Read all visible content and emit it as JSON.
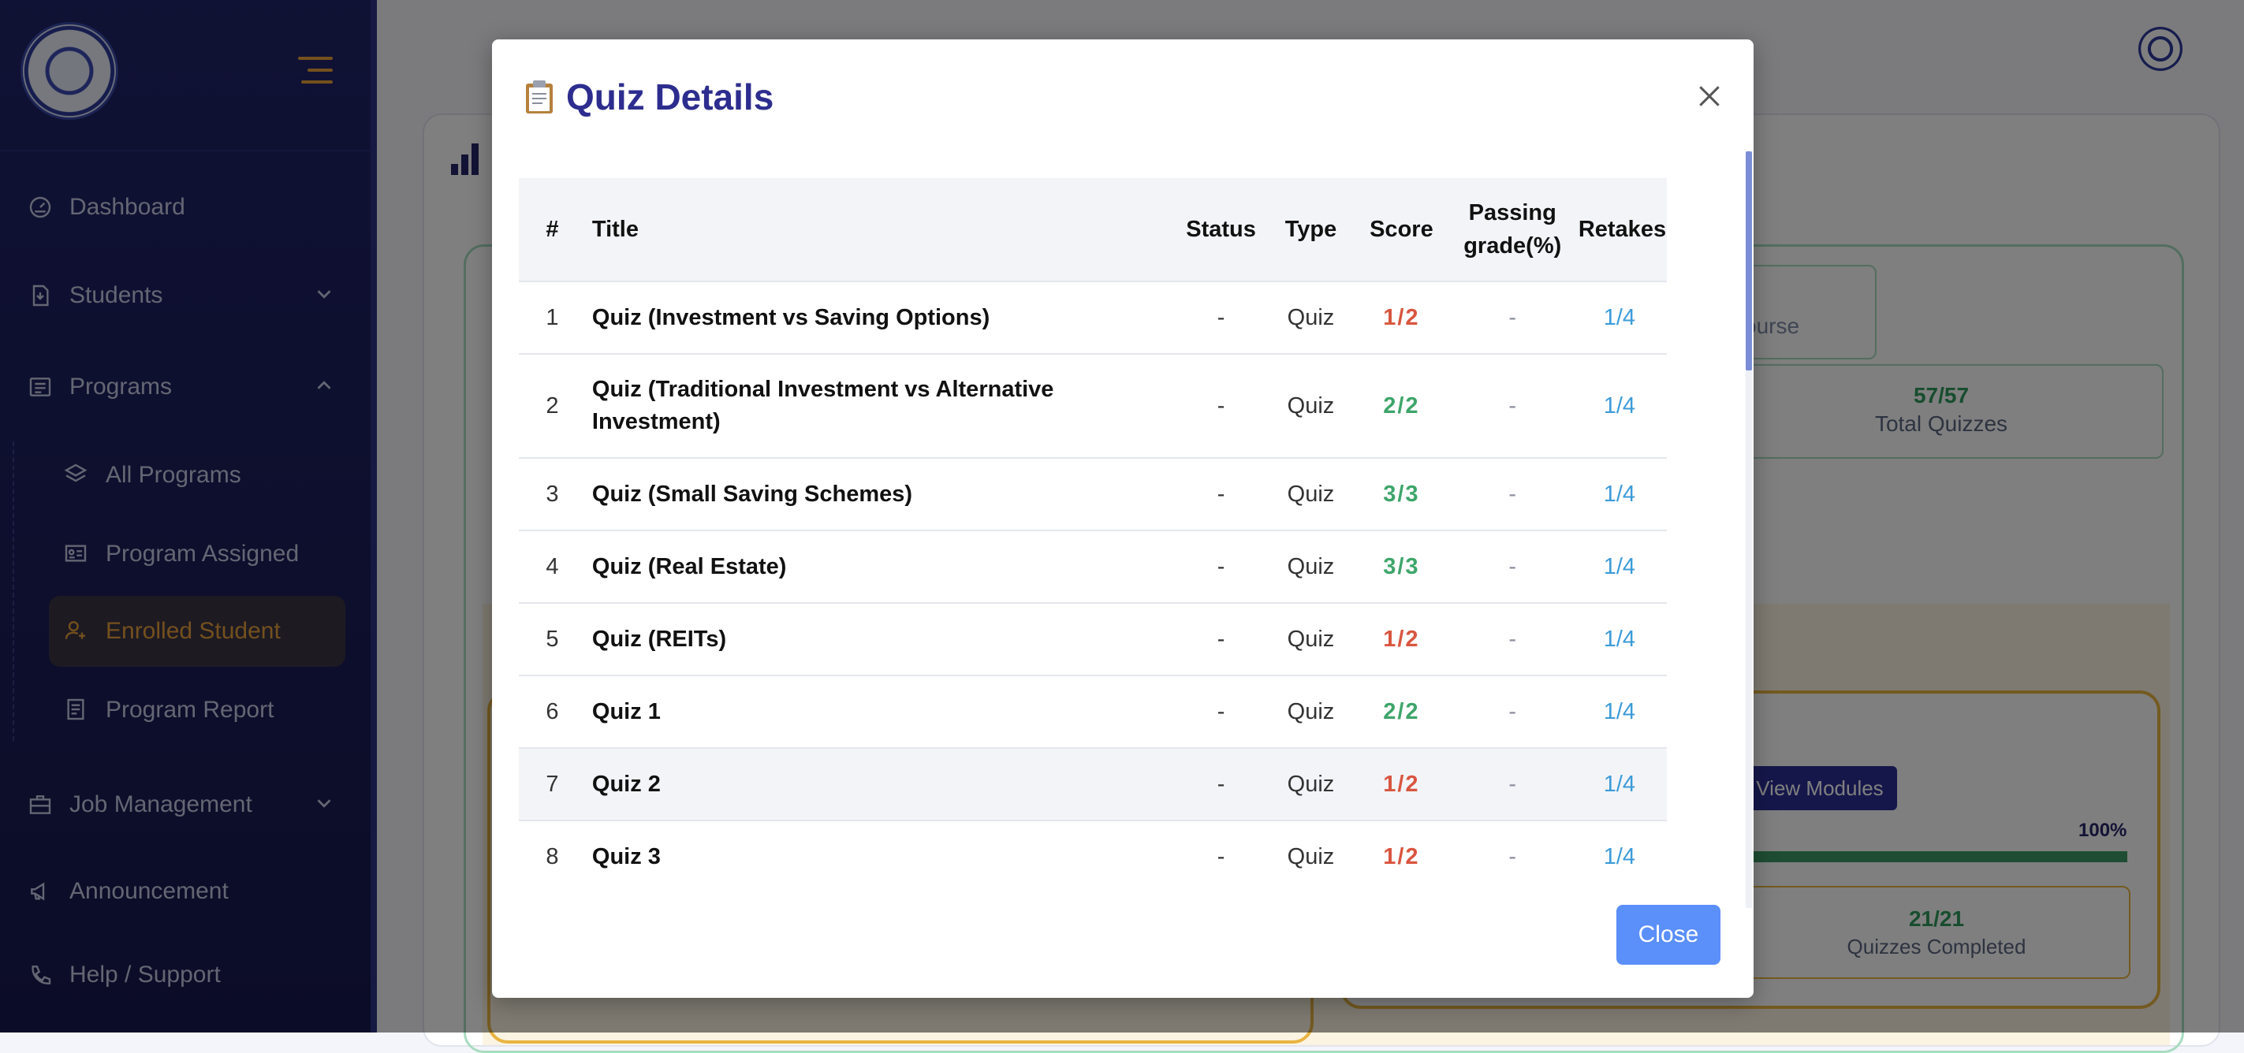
{
  "sidebar": {
    "items": [
      {
        "label": "Dashboard",
        "icon": "dashboard-icon"
      },
      {
        "label": "Students",
        "icon": "file-user-icon"
      },
      {
        "label": "Programs",
        "icon": "list-box-icon"
      },
      {
        "label": "Job Management",
        "icon": "briefcase-icon"
      },
      {
        "label": "Announcement",
        "icon": "megaphone-icon"
      },
      {
        "label": "Help / Support",
        "icon": "phone-icon"
      }
    ],
    "sub_items": [
      {
        "label": "All Programs",
        "icon": "layers-icon"
      },
      {
        "label": "Program Assigned",
        "icon": "id-card-icon"
      },
      {
        "label": "Enrolled Student",
        "icon": "user-plus-icon"
      },
      {
        "label": "Program Report",
        "icon": "report-icon"
      }
    ],
    "active_color": "#e8a03a"
  },
  "background": {
    "course_label": "ourse",
    "total_quizzes_value": "57/57",
    "total_quizzes_label": "Total Quizzes",
    "view_modules_label": "View Modules",
    "progress_percent_label": "100%",
    "progress_fraction": 1.0,
    "quizzes_completed_value": "21/21",
    "quizzes_completed_label": "Quizzes Completed"
  },
  "modal": {
    "title_icon": "clipboard-icon",
    "title": "Quiz Details",
    "close_button_label": "Close",
    "columns": {
      "num": "#",
      "title": "Title",
      "status": "Status",
      "type": "Type",
      "score": "Score",
      "passing": "Passing grade(%)",
      "retakes": "Retakes"
    },
    "rows": [
      {
        "num": "1",
        "title": "Quiz (Investment vs Saving Options)",
        "status": "-",
        "type": "Quiz",
        "score": "1/2",
        "passing": "-",
        "retakes": "1/4",
        "score_color": "#d9553f"
      },
      {
        "num": "2",
        "title": "Quiz (Traditional Investment vs Alternative Investment)",
        "status": "-",
        "type": "Quiz",
        "score": "2/2",
        "passing": "-",
        "retakes": "1/4",
        "score_color": "#3ea56a"
      },
      {
        "num": "3",
        "title": "Quiz (Small Saving Schemes)",
        "status": "-",
        "type": "Quiz",
        "score": "3/3",
        "passing": "-",
        "retakes": "1/4",
        "score_color": "#3ea56a"
      },
      {
        "num": "4",
        "title": "Quiz (Real Estate)",
        "status": "-",
        "type": "Quiz",
        "score": "3/3",
        "passing": "-",
        "retakes": "1/4",
        "score_color": "#3ea56a"
      },
      {
        "num": "5",
        "title": "Quiz (REITs)",
        "status": "-",
        "type": "Quiz",
        "score": "1/2",
        "passing": "-",
        "retakes": "1/4",
        "score_color": "#d9553f"
      },
      {
        "num": "6",
        "title": "Quiz 1",
        "status": "-",
        "type": "Quiz",
        "score": "2/2",
        "passing": "-",
        "retakes": "1/4",
        "score_color": "#3ea56a"
      },
      {
        "num": "7",
        "title": "Quiz 2",
        "status": "-",
        "type": "Quiz",
        "score": "1/2",
        "passing": "-",
        "retakes": "1/4",
        "score_color": "#d9553f"
      },
      {
        "num": "8",
        "title": "Quiz 3",
        "status": "-",
        "type": "Quiz",
        "score": "1/2",
        "passing": "-",
        "retakes": "1/4",
        "score_color": "#d9553f"
      }
    ]
  }
}
